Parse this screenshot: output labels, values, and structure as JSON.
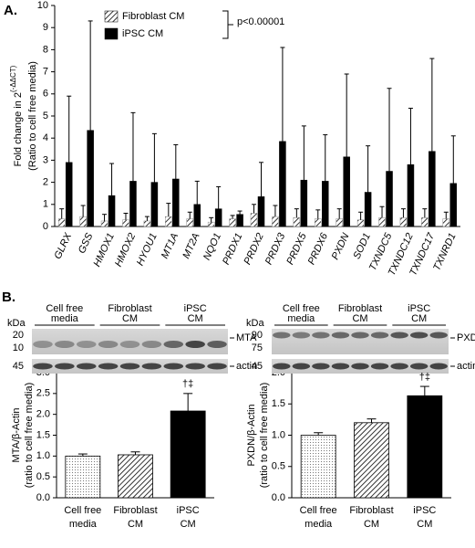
{
  "chart_data": [
    {
      "type": "bar",
      "panel": "A.",
      "ylabel": "Fold change in 2",
      "ylabel_sup": "(-ΔΔCT)",
      "ylabel2": "(Ratio to cell free media)",
      "annotation": "p<0.00001",
      "categories": [
        "GLRX",
        "GSS",
        "HMOX1",
        "HMOX2",
        "HYOU1",
        "MT1A",
        "MT2A",
        "NQO1",
        "PRDX1",
        "PRDX2",
        "PRDX3",
        "PRDX5",
        "PRDX6",
        "PXDN",
        "SOD1",
        "TXNDC5",
        "TXNDC12",
        "TXNDC17",
        "TXNRD1"
      ],
      "series": [
        {
          "name": "Fibroblast CM",
          "color": "#000000",
          "fill": "hatch",
          "values": [
            0.35,
            0.45,
            0.25,
            0.3,
            0.25,
            0.45,
            0.35,
            0.2,
            0.35,
            0.6,
            0.45,
            0.4,
            0.35,
            0.35,
            0.3,
            0.4,
            0.4,
            0.4,
            0.35
          ],
          "errors": [
            0.45,
            0.5,
            0.3,
            0.3,
            0.2,
            0.6,
            0.3,
            0.2,
            0.15,
            0.4,
            0.5,
            0.4,
            0.4,
            0.45,
            0.35,
            0.5,
            0.4,
            0.4,
            0.3
          ]
        },
        {
          "name": "iPSC CM",
          "color": "#000000",
          "fill": "solid",
          "values": [
            2.9,
            4.35,
            1.4,
            2.05,
            2.0,
            2.15,
            1.0,
            0.8,
            0.55,
            1.35,
            3.85,
            2.1,
            2.05,
            3.15,
            1.55,
            2.5,
            2.8,
            3.4,
            1.95
          ],
          "errors": [
            3.0,
            4.95,
            1.45,
            3.1,
            2.2,
            1.55,
            1.05,
            1.0,
            0.15,
            1.55,
            4.25,
            2.45,
            2.1,
            3.75,
            2.1,
            3.75,
            2.55,
            4.2,
            2.15
          ]
        }
      ],
      "ylim": [
        0,
        10
      ],
      "yticks": [
        0,
        1,
        2,
        3,
        4,
        5,
        6,
        7,
        8,
        9,
        10
      ]
    },
    {
      "type": "bar",
      "panel": "B.",
      "blot": {
        "unit": "kDa",
        "markers": [
          20,
          10,
          45
        ],
        "target": "MTA",
        "control": "actin",
        "groups": [
          [
            "Cell free",
            "media"
          ],
          [
            "Fibroblast",
            "CM"
          ],
          [
            "iPSC",
            "CM"
          ]
        ]
      },
      "ylabel": "MTA/β-Actin",
      "ylabel2": "(ratio to cell free media)",
      "categories": [
        [
          "Cell free",
          "media"
        ],
        [
          "Fibroblast",
          "CM"
        ],
        [
          "iPSC",
          "CM"
        ]
      ],
      "values": [
        1.0,
        1.03,
        2.08
      ],
      "errors": [
        0.05,
        0.07,
        0.42
      ],
      "fills": [
        "dots",
        "hatch",
        "solid"
      ],
      "color": "#000000",
      "annotation": "†‡",
      "annotation_index": 2,
      "ylim": [
        0,
        3
      ],
      "yticks": [
        {
          "value": 0,
          "label": "0.0"
        },
        {
          "value": 0.5,
          "label": "0.5"
        },
        {
          "value": 1,
          "label": "1.0"
        },
        {
          "value": 1.5,
          "label": "1.5"
        },
        {
          "value": 2,
          "label": "2.0"
        },
        {
          "value": 2.5,
          "label": "2.5"
        },
        {
          "value": 3,
          "label": "3.0"
        }
      ]
    },
    {
      "type": "bar",
      "blot": {
        "unit": "kDa",
        "markers": [
          90,
          75,
          45
        ],
        "target": "PXDN",
        "control": "actin",
        "groups": [
          [
            "Cell free",
            "media"
          ],
          [
            "Fibroblast",
            "CM"
          ],
          [
            "iPSC",
            "CM"
          ]
        ]
      },
      "ylabel": "PXDN/β-Actin",
      "ylabel2": "(ratio to cell free media)",
      "categories": [
        [
          "Cell free",
          "media"
        ],
        [
          "Fibroblast",
          "CM"
        ],
        [
          "iPSC",
          "CM"
        ]
      ],
      "values": [
        1.0,
        1.2,
        1.63
      ],
      "errors": [
        0.04,
        0.06,
        0.15
      ],
      "fills": [
        "dots",
        "hatch",
        "solid"
      ],
      "color": "#000000",
      "annotation": "†‡",
      "annotation_index": 2,
      "ylim": [
        0,
        2
      ],
      "yticks": [
        {
          "value": 0,
          "label": "0.0"
        },
        {
          "value": 0.5,
          "label": "0.5"
        },
        {
          "value": 1,
          "label": "1.0"
        },
        {
          "value": 1.5,
          "label": "1.5"
        },
        {
          "value": 2,
          "label": "2.0"
        }
      ]
    }
  ]
}
